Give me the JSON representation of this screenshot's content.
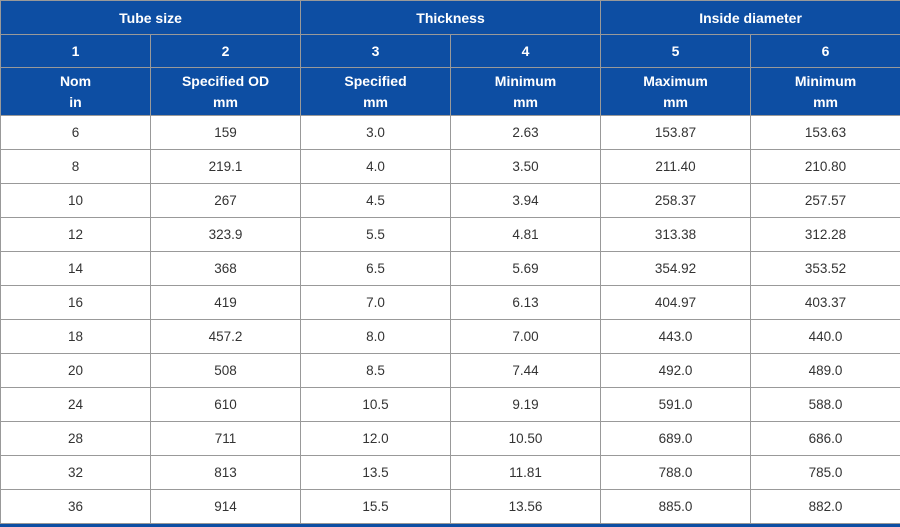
{
  "colors": {
    "header_bg": "#0d4ea3",
    "header_text": "#ffffff",
    "grid_line": "#999999",
    "body_text": "#333333",
    "row_bg": "#ffffff"
  },
  "table": {
    "column_groups": [
      {
        "label": "Tube size"
      },
      {
        "label": "Thickness"
      },
      {
        "label": "Inside diameter"
      }
    ],
    "column_numbers": [
      "1",
      "2",
      "3",
      "4",
      "5",
      "6"
    ],
    "column_headers": [
      "Nom\nin",
      "Specified OD\nmm",
      "Specified\nmm",
      "Minimum\nmm",
      "Maximum\nmm",
      "Minimum\nmm"
    ]
  },
  "chart_data": {
    "type": "table",
    "title": "",
    "column_groups": [
      "Tube size",
      "Tube size",
      "Thickness",
      "Thickness",
      "Inside diameter",
      "Inside diameter"
    ],
    "columns": [
      "Nom in",
      "Specified OD mm",
      "Specified mm",
      "Minimum mm",
      "Maximum mm",
      "Minimum mm"
    ],
    "rows": [
      [
        "6",
        "159",
        "3.0",
        "2.63",
        "153.87",
        "153.63"
      ],
      [
        "8",
        "219.1",
        "4.0",
        "3.50",
        "211.40",
        "210.80"
      ],
      [
        "10",
        "267",
        "4.5",
        "3.94",
        "258.37",
        "257.57"
      ],
      [
        "12",
        "323.9",
        "5.5",
        "4.81",
        "313.38",
        "312.28"
      ],
      [
        "14",
        "368",
        "6.5",
        "5.69",
        "354.92",
        "353.52"
      ],
      [
        "16",
        "419",
        "7.0",
        "6.13",
        "404.97",
        "403.37"
      ],
      [
        "18",
        "457.2",
        "8.0",
        "7.00",
        "443.0",
        "440.0"
      ],
      [
        "20",
        "508",
        "8.5",
        "7.44",
        "492.0",
        "489.0"
      ],
      [
        "24",
        "610",
        "10.5",
        "9.19",
        "591.0",
        "588.0"
      ],
      [
        "28",
        "711",
        "12.0",
        "10.50",
        "689.0",
        "686.0"
      ],
      [
        "32",
        "813",
        "13.5",
        "11.81",
        "788.0",
        "785.0"
      ],
      [
        "36",
        "914",
        "15.5",
        "13.56",
        "885.0",
        "882.0"
      ]
    ]
  }
}
